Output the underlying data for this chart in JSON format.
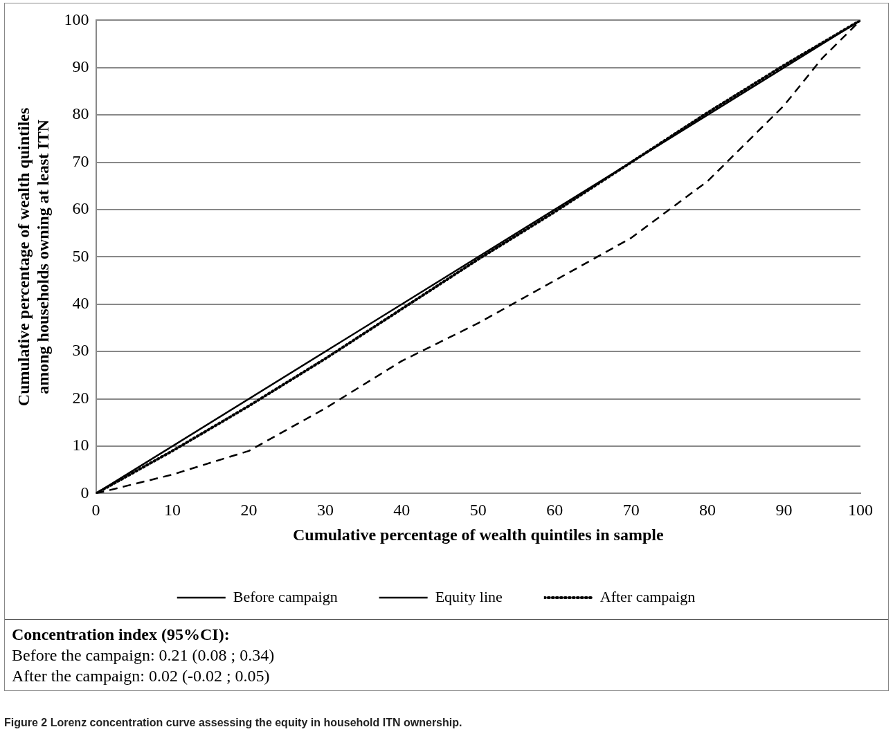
{
  "chart_data": {
    "type": "line",
    "xlabel": "Cumulative percentage of wealth quintiles in sample",
    "ylabel": "Cumulative percentage of wealth quintiles among households owning at least ITN",
    "xlim": [
      0,
      100
    ],
    "xticks": [
      0,
      10,
      20,
      30,
      40,
      50,
      60,
      70,
      80,
      90,
      100
    ],
    "ylim": [
      0,
      100
    ],
    "yticks": [
      0,
      10,
      20,
      30,
      40,
      50,
      60,
      70,
      80,
      90,
      100
    ],
    "grid": "y",
    "legend": "bottom",
    "marker": "none",
    "series": [
      {
        "name": "Before campaign",
        "color": "#000000",
        "line_style": "dashed",
        "x": [
          0,
          10,
          20,
          30,
          40,
          50,
          60,
          70,
          80,
          90,
          95,
          100
        ],
        "values": [
          0,
          4,
          9,
          18,
          28,
          36,
          45,
          54,
          66,
          82,
          92,
          100
        ]
      },
      {
        "name": "Equity line",
        "color": "#000000",
        "line_style": "solid",
        "x": [
          0,
          100
        ],
        "values": [
          0,
          100
        ]
      },
      {
        "name": "After campaign",
        "color": "#000000",
        "line_style": "dotted",
        "x": [
          0,
          10,
          20,
          30,
          40,
          50,
          60,
          70,
          80,
          90,
          100
        ],
        "values": [
          0,
          9,
          18.5,
          28.5,
          39,
          49.5,
          59.5,
          70,
          80.5,
          90.5,
          100
        ]
      }
    ],
    "annotations": [
      "Concentration index (95%CI):",
      "Before the campaign: 0.21 (0.08 ; 0.34)",
      "After the campaign: 0.02 (-0.02 ; 0.05)",
      "Figure 2 Lorenz concentration curve assessing the equity in household ITN ownership."
    ]
  }
}
